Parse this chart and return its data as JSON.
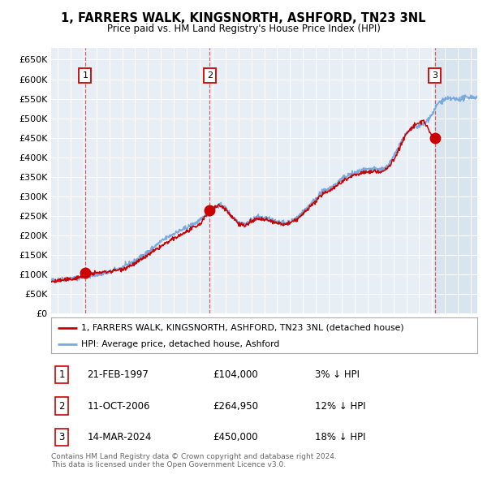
{
  "title": "1, FARRERS WALK, KINGSNORTH, ASHFORD, TN23 3NL",
  "subtitle": "Price paid vs. HM Land Registry's House Price Index (HPI)",
  "background_color": "#e8eef5",
  "plot_bg_color": "#e8eef5",
  "grid_color": "#ffffff",
  "ylim": [
    0,
    680000
  ],
  "yticks": [
    0,
    50000,
    100000,
    150000,
    200000,
    250000,
    300000,
    350000,
    400000,
    450000,
    500000,
    550000,
    600000,
    650000
  ],
  "xlim_start": 1994.5,
  "xlim_end": 2027.5,
  "xticks": [
    1995,
    1996,
    1997,
    1998,
    1999,
    2000,
    2001,
    2002,
    2003,
    2004,
    2005,
    2006,
    2007,
    2008,
    2009,
    2010,
    2011,
    2012,
    2013,
    2014,
    2015,
    2016,
    2017,
    2018,
    2019,
    2020,
    2021,
    2022,
    2023,
    2024,
    2025,
    2026,
    2027
  ],
  "sale_dates": [
    1997.13,
    2006.78,
    2024.2
  ],
  "sale_prices": [
    104000,
    264950,
    450000
  ],
  "sale_labels": [
    "1",
    "2",
    "3"
  ],
  "red_line_color": "#cc0000",
  "blue_line_color": "#7aaadd",
  "sale_dot_color": "#cc0000",
  "legend_label_red": "1, FARRERS WALK, KINGSNORTH, ASHFORD, TN23 3NL (detached house)",
  "legend_label_blue": "HPI: Average price, detached house, Ashford",
  "table_data": [
    {
      "num": "1",
      "date": "21-FEB-1997",
      "price": "£104,000",
      "hpi": "3% ↓ HPI"
    },
    {
      "num": "2",
      "date": "11-OCT-2006",
      "price": "£264,950",
      "hpi": "12% ↓ HPI"
    },
    {
      "num": "3",
      "date": "14-MAR-2024",
      "price": "£450,000",
      "hpi": "18% ↓ HPI"
    }
  ],
  "footer_text": "Contains HM Land Registry data © Crown copyright and database right 2024.\nThis data is licensed under the Open Government Licence v3.0.",
  "future_start": 2024.25,
  "hpi_anchors": [
    [
      1994.5,
      85000
    ],
    [
      1995.0,
      87000
    ],
    [
      1996.0,
      90000
    ],
    [
      1997.0,
      94000
    ],
    [
      1998.0,
      100000
    ],
    [
      1999.0,
      106000
    ],
    [
      2000.0,
      118000
    ],
    [
      2001.0,
      135000
    ],
    [
      2002.0,
      158000
    ],
    [
      2003.0,
      185000
    ],
    [
      2004.0,
      205000
    ],
    [
      2005.0,
      220000
    ],
    [
      2006.0,
      238000
    ],
    [
      2007.0,
      265000
    ],
    [
      2007.5,
      278000
    ],
    [
      2008.0,
      270000
    ],
    [
      2008.5,
      250000
    ],
    [
      2009.0,
      235000
    ],
    [
      2009.5,
      228000
    ],
    [
      2010.0,
      240000
    ],
    [
      2010.5,
      248000
    ],
    [
      2011.0,
      245000
    ],
    [
      2011.5,
      240000
    ],
    [
      2012.0,
      235000
    ],
    [
      2012.5,
      232000
    ],
    [
      2013.0,
      235000
    ],
    [
      2013.5,
      245000
    ],
    [
      2014.0,
      260000
    ],
    [
      2014.5,
      278000
    ],
    [
      2015.0,
      295000
    ],
    [
      2015.5,
      312000
    ],
    [
      2016.0,
      320000
    ],
    [
      2016.5,
      330000
    ],
    [
      2017.0,
      345000
    ],
    [
      2017.5,
      355000
    ],
    [
      2018.0,
      360000
    ],
    [
      2018.5,
      365000
    ],
    [
      2019.0,
      368000
    ],
    [
      2019.5,
      370000
    ],
    [
      2020.0,
      368000
    ],
    [
      2020.5,
      375000
    ],
    [
      2021.0,
      400000
    ],
    [
      2021.5,
      435000
    ],
    [
      2022.0,
      460000
    ],
    [
      2022.5,
      475000
    ],
    [
      2023.0,
      480000
    ],
    [
      2023.5,
      490000
    ],
    [
      2024.0,
      510000
    ],
    [
      2024.5,
      540000
    ],
    [
      2025.0,
      548000
    ],
    [
      2025.5,
      550000
    ],
    [
      2026.0,
      548000
    ],
    [
      2026.5,
      552000
    ],
    [
      2027.0,
      555000
    ],
    [
      2027.5,
      553000
    ]
  ],
  "red_anchors": [
    [
      1994.5,
      82000
    ],
    [
      1995.0,
      84000
    ],
    [
      1996.0,
      88000
    ],
    [
      1997.0,
      96000
    ],
    [
      1997.13,
      104000
    ],
    [
      1998.0,
      104000
    ],
    [
      1999.0,
      108000
    ],
    [
      2000.0,
      114000
    ],
    [
      2001.0,
      128000
    ],
    [
      2002.0,
      150000
    ],
    [
      2003.0,
      172000
    ],
    [
      2004.0,
      192000
    ],
    [
      2005.0,
      210000
    ],
    [
      2006.0,
      228000
    ],
    [
      2006.78,
      264950
    ],
    [
      2007.0,
      268000
    ],
    [
      2007.5,
      278000
    ],
    [
      2008.0,
      268000
    ],
    [
      2008.5,
      248000
    ],
    [
      2009.0,
      232000
    ],
    [
      2009.5,
      225000
    ],
    [
      2010.0,
      235000
    ],
    [
      2010.5,
      243000
    ],
    [
      2011.0,
      240000
    ],
    [
      2011.5,
      237000
    ],
    [
      2012.0,
      232000
    ],
    [
      2012.5,
      228000
    ],
    [
      2013.0,
      232000
    ],
    [
      2013.5,
      240000
    ],
    [
      2014.0,
      255000
    ],
    [
      2014.5,
      272000
    ],
    [
      2015.0,
      288000
    ],
    [
      2015.5,
      305000
    ],
    [
      2016.0,
      315000
    ],
    [
      2016.5,
      325000
    ],
    [
      2017.0,
      338000
    ],
    [
      2017.5,
      348000
    ],
    [
      2018.0,
      355000
    ],
    [
      2018.5,
      360000
    ],
    [
      2019.0,
      362000
    ],
    [
      2019.5,
      365000
    ],
    [
      2020.0,
      362000
    ],
    [
      2020.5,
      370000
    ],
    [
      2021.0,
      392000
    ],
    [
      2021.5,
      425000
    ],
    [
      2022.0,
      460000
    ],
    [
      2022.5,
      478000
    ],
    [
      2023.0,
      488000
    ],
    [
      2023.3,
      495000
    ],
    [
      2023.6,
      480000
    ],
    [
      2023.8,
      465000
    ],
    [
      2024.0,
      452000
    ],
    [
      2024.2,
      450000
    ]
  ]
}
